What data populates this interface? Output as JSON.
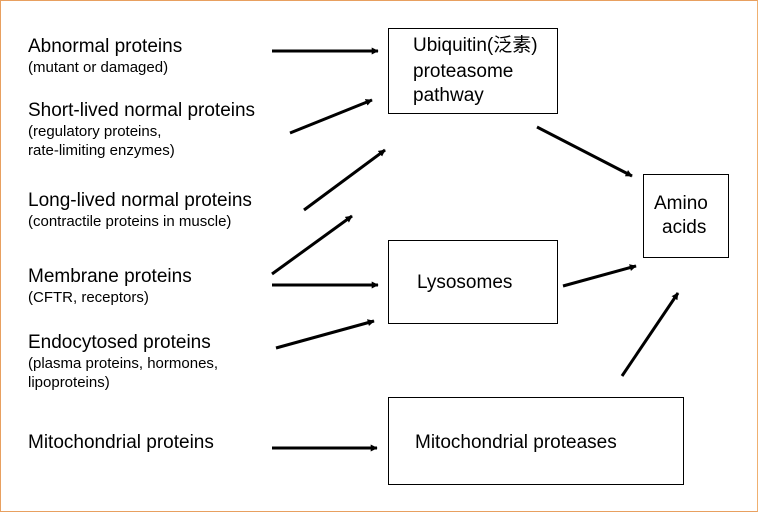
{
  "sources": [
    {
      "title": "Abnormal proteins",
      "detail": [
        "(mutant or damaged)"
      ]
    },
    {
      "title": "Short-lived normal proteins",
      "detail": [
        "(regulatory proteins,",
        "rate-limiting enzymes)"
      ]
    },
    {
      "title": "Long-lived normal proteins",
      "detail": [
        "(contractile proteins in muscle)"
      ]
    },
    {
      "title": "Membrane proteins",
      "detail": [
        "(CFTR, receptors)"
      ]
    },
    {
      "title": "Endocytosed proteins",
      "detail": [
        "(plasma proteins, hormones,",
        "lipoproteins)"
      ]
    },
    {
      "title": "Mitochondrial proteins",
      "detail": []
    }
  ],
  "pathways": {
    "ubiquitin": [
      "Ubiquitin(泛素)",
      "proteasome",
      "pathway"
    ],
    "lysosomes": [
      "Lysosomes"
    ],
    "mito_proteases": [
      "Mitochondrial proteases"
    ]
  },
  "product": [
    "Amino",
    "acids"
  ],
  "colors": {
    "frame": "#e8a060",
    "ink": "#000000"
  }
}
